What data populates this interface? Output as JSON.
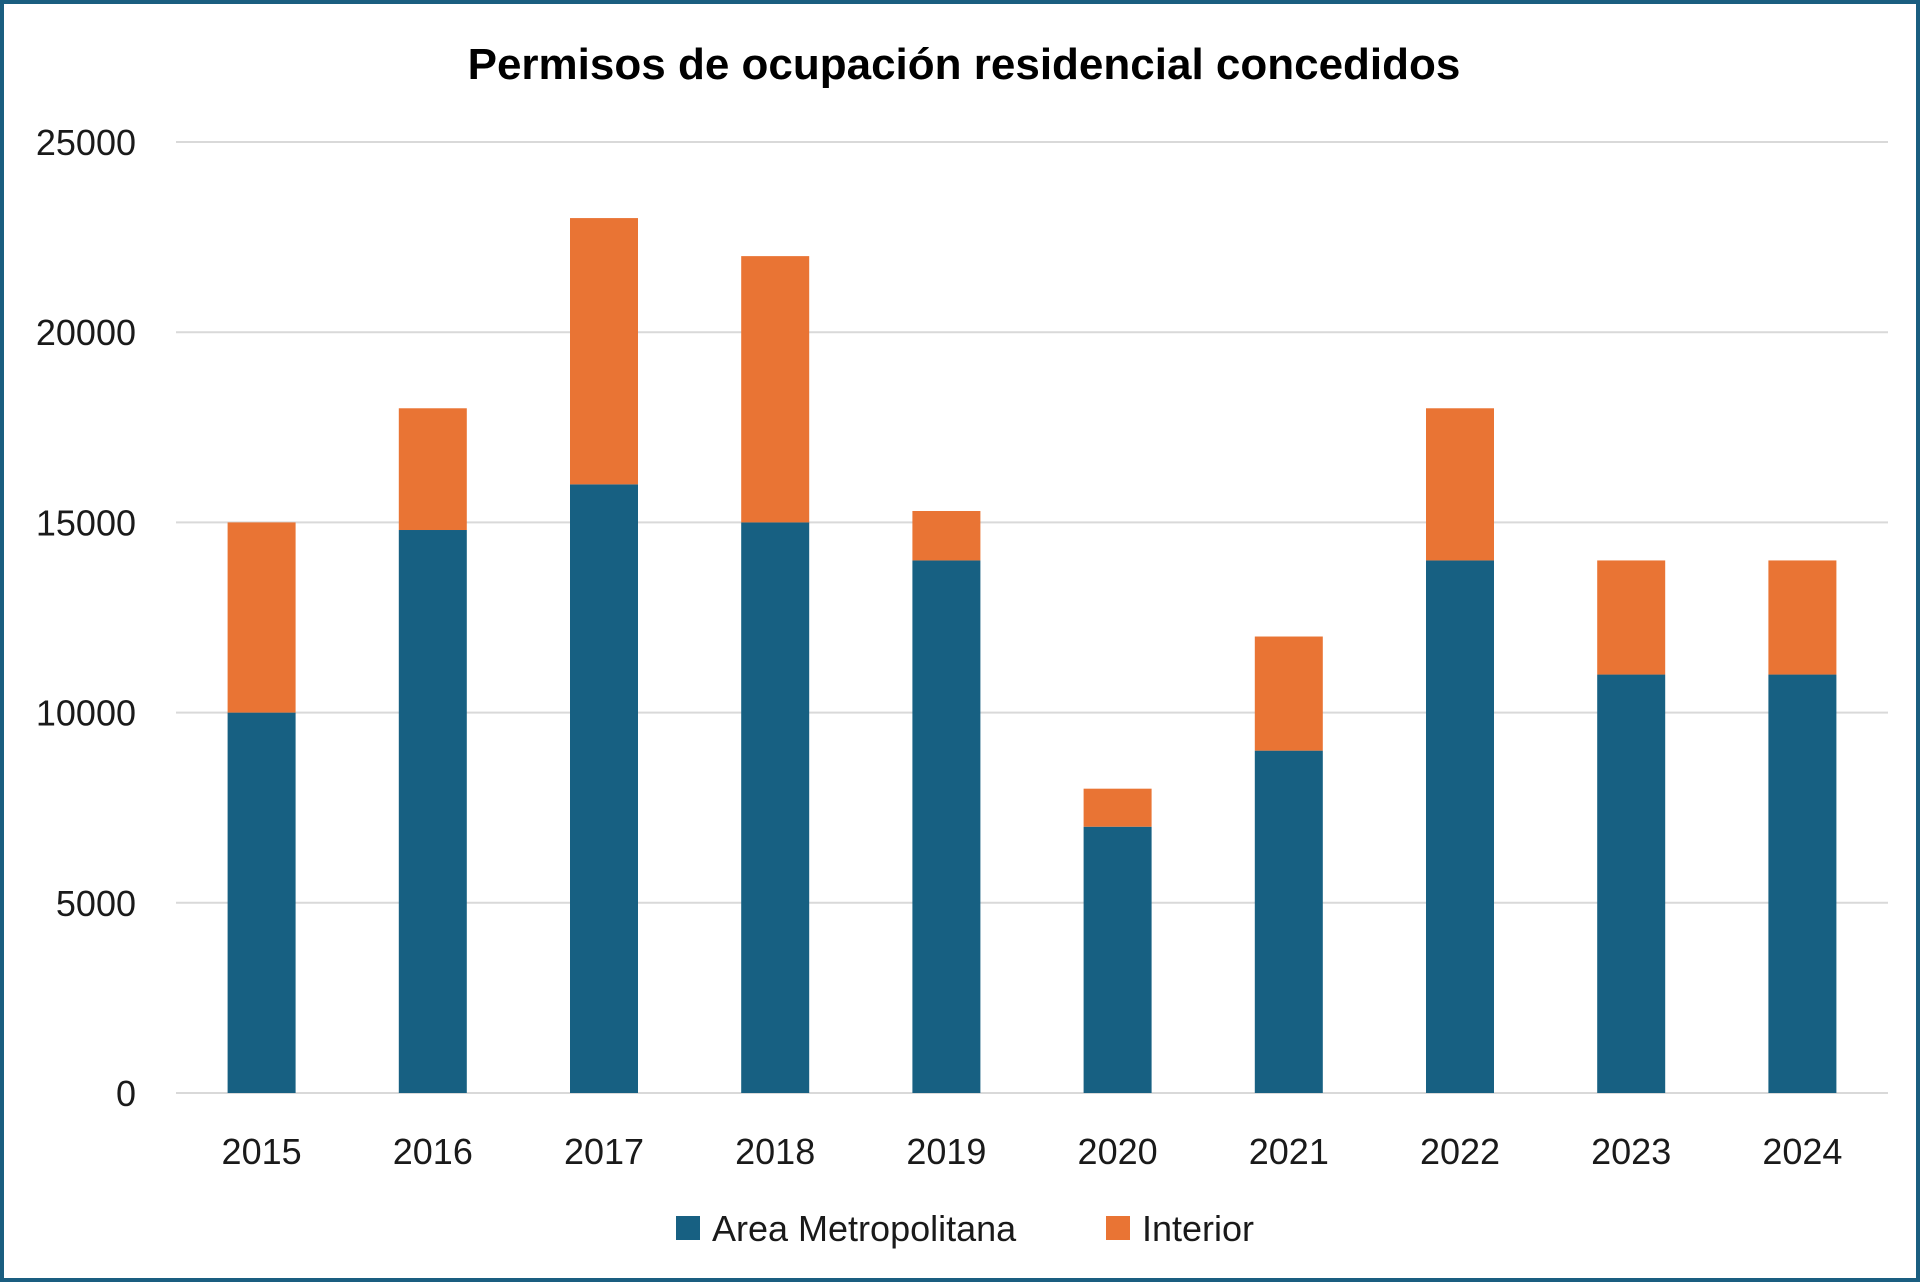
{
  "chart_data": {
    "type": "bar",
    "stacked": true,
    "title": "Permisos de ocupación residencial concedidos",
    "xlabel": "",
    "ylabel": "",
    "categories": [
      "2015",
      "2016",
      "2017",
      "2018",
      "2019",
      "2020",
      "2021",
      "2022",
      "2023",
      "2024"
    ],
    "series": [
      {
        "name": "Area Metropolitana",
        "color": "#176082",
        "values": [
          10000,
          14800,
          16000,
          15000,
          14000,
          7000,
          9000,
          14000,
          11000,
          11000
        ]
      },
      {
        "name": "Interior",
        "color": "#e97434",
        "values": [
          5000,
          3200,
          7000,
          7000,
          1300,
          1000,
          3000,
          4000,
          3000,
          3000
        ]
      }
    ],
    "ylim": [
      0,
      25000
    ],
    "yticks": [
      "0",
      "5000",
      "10000",
      "15000",
      "20000",
      "25000"
    ],
    "grid": true,
    "legend_position": "bottom-center"
  }
}
